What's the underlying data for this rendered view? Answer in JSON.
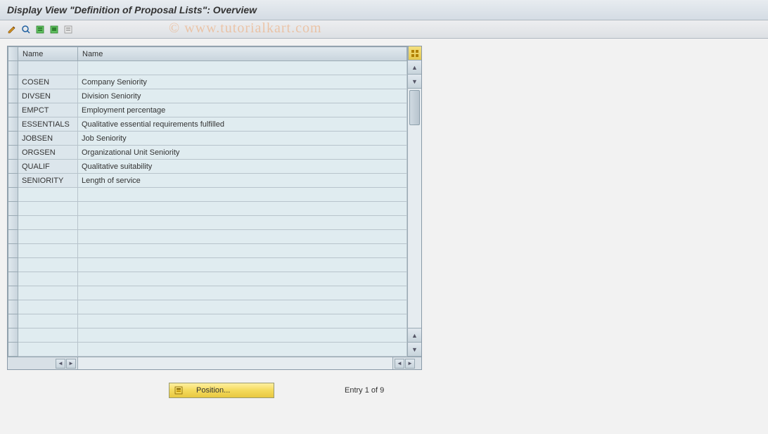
{
  "title": "Display View \"Definition of Proposal Lists\": Overview",
  "watermark": "© www.tutorialkart.com",
  "columns": {
    "col1": "Name",
    "col2": "Name"
  },
  "rows": [
    {
      "code": "",
      "desc": ""
    },
    {
      "code": "COSEN",
      "desc": "Company Seniority"
    },
    {
      "code": "DIVSEN",
      "desc": "Division Seniority"
    },
    {
      "code": "EMPCT",
      "desc": "Employment percentage"
    },
    {
      "code": "ESSENTIALS",
      "desc": "Qualitative essential requirements fulfilled"
    },
    {
      "code": "JOBSEN",
      "desc": "Job Seniority"
    },
    {
      "code": "ORGSEN",
      "desc": "Organizational Unit Seniority"
    },
    {
      "code": "QUALIF",
      "desc": "Qualitative suitability"
    },
    {
      "code": "SENIORITY",
      "desc": "Length of service"
    }
  ],
  "empty_row_count": 12,
  "footer": {
    "position_label": "Position...",
    "entry_text": "Entry 1 of 9"
  },
  "colors": {
    "title_bg_top": "#e8ecf0",
    "title_bg_bottom": "#d4dce4",
    "cell_bg": "#e0ecf0",
    "border": "#9aaab4",
    "config_btn": "#e4c850",
    "button_gold_top": "#fff0a0",
    "button_gold_bottom": "#e8c840"
  }
}
